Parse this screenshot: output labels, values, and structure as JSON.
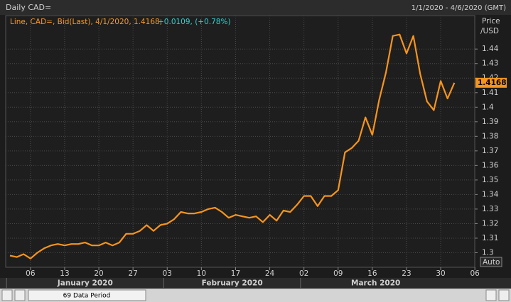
{
  "chart_data": {
    "type": "line",
    "title": "Daily CAD=",
    "date_range": "1/1/2020 - 4/6/2020 (GMT)",
    "legend_text": "Line, CAD=, Bid(Last), 4/1/2020, 1.4168,",
    "legend_change": "+0.0109, (+0.78%)",
    "y_label": [
      "Price",
      "/USD"
    ],
    "x": [
      "2020-01-01",
      "2020-01-02",
      "2020-01-03",
      "2020-01-06",
      "2020-01-07",
      "2020-01-08",
      "2020-01-09",
      "2020-01-10",
      "2020-01-13",
      "2020-01-14",
      "2020-01-15",
      "2020-01-16",
      "2020-01-17",
      "2020-01-20",
      "2020-01-21",
      "2020-01-22",
      "2020-01-23",
      "2020-01-24",
      "2020-01-27",
      "2020-01-28",
      "2020-01-29",
      "2020-01-30",
      "2020-01-31",
      "2020-02-03",
      "2020-02-04",
      "2020-02-05",
      "2020-02-06",
      "2020-02-07",
      "2020-02-10",
      "2020-02-11",
      "2020-02-12",
      "2020-02-13",
      "2020-02-14",
      "2020-02-17",
      "2020-02-18",
      "2020-02-19",
      "2020-02-20",
      "2020-02-21",
      "2020-02-24",
      "2020-02-25",
      "2020-02-26",
      "2020-02-27",
      "2020-02-28",
      "2020-03-02",
      "2020-03-03",
      "2020-03-04",
      "2020-03-05",
      "2020-03-06",
      "2020-03-09",
      "2020-03-10",
      "2020-03-11",
      "2020-03-12",
      "2020-03-13",
      "2020-03-16",
      "2020-03-17",
      "2020-03-18",
      "2020-03-19",
      "2020-03-20",
      "2020-03-23",
      "2020-03-24",
      "2020-03-25",
      "2020-03-26",
      "2020-03-27",
      "2020-03-30",
      "2020-03-31",
      "2020-04-01"
    ],
    "series": [
      {
        "name": "CAD=",
        "color": "#f7941d",
        "values": [
          1.298,
          1.297,
          1.299,
          1.296,
          1.3,
          1.303,
          1.305,
          1.306,
          1.305,
          1.306,
          1.306,
          1.307,
          1.305,
          1.305,
          1.307,
          1.305,
          1.307,
          1.313,
          1.313,
          1.315,
          1.319,
          1.315,
          1.319,
          1.32,
          1.323,
          1.328,
          1.327,
          1.327,
          1.328,
          1.33,
          1.331,
          1.328,
          1.324,
          1.326,
          1.325,
          1.324,
          1.325,
          1.321,
          1.326,
          1.322,
          1.329,
          1.328,
          1.333,
          1.339,
          1.339,
          1.332,
          1.339,
          1.339,
          1.343,
          1.369,
          1.372,
          1.377,
          1.393,
          1.381,
          1.405,
          1.424,
          1.449,
          1.45,
          1.437,
          1.449,
          1.423,
          1.404,
          1.398,
          1.418,
          1.406,
          1.4168
        ]
      }
    ],
    "last_value": 1.4168,
    "ylim": [
      1.29,
      1.463
    ],
    "yticks": [
      1.3,
      1.31,
      1.32,
      1.33,
      1.34,
      1.35,
      1.36,
      1.37,
      1.38,
      1.39,
      1.4,
      1.41,
      1.42,
      1.43,
      1.44
    ],
    "xticks": [
      {
        "value": "2020-01-06",
        "label": "06"
      },
      {
        "value": "2020-01-13",
        "label": "13"
      },
      {
        "value": "2020-01-20",
        "label": "20"
      },
      {
        "value": "2020-01-27",
        "label": "27"
      },
      {
        "value": "2020-02-03",
        "label": "03"
      },
      {
        "value": "2020-02-10",
        "label": "10"
      },
      {
        "value": "2020-02-17",
        "label": "17"
      },
      {
        "value": "2020-02-24",
        "label": "24"
      },
      {
        "value": "2020-03-02",
        "label": "02"
      },
      {
        "value": "2020-03-09",
        "label": "09"
      },
      {
        "value": "2020-03-16",
        "label": "16"
      },
      {
        "value": "2020-03-23",
        "label": "23"
      },
      {
        "value": "2020-03-30",
        "label": "30"
      },
      {
        "value": "2020-04-06",
        "label": "06"
      }
    ],
    "months": [
      {
        "value": "2020-01",
        "label": "January 2020"
      },
      {
        "value": "2020-02",
        "label": "February 2020"
      },
      {
        "value": "2020-03",
        "label": "March 2020"
      }
    ],
    "scale_mode": "Auto",
    "period_label": "69 Data Period",
    "grid": true
  }
}
